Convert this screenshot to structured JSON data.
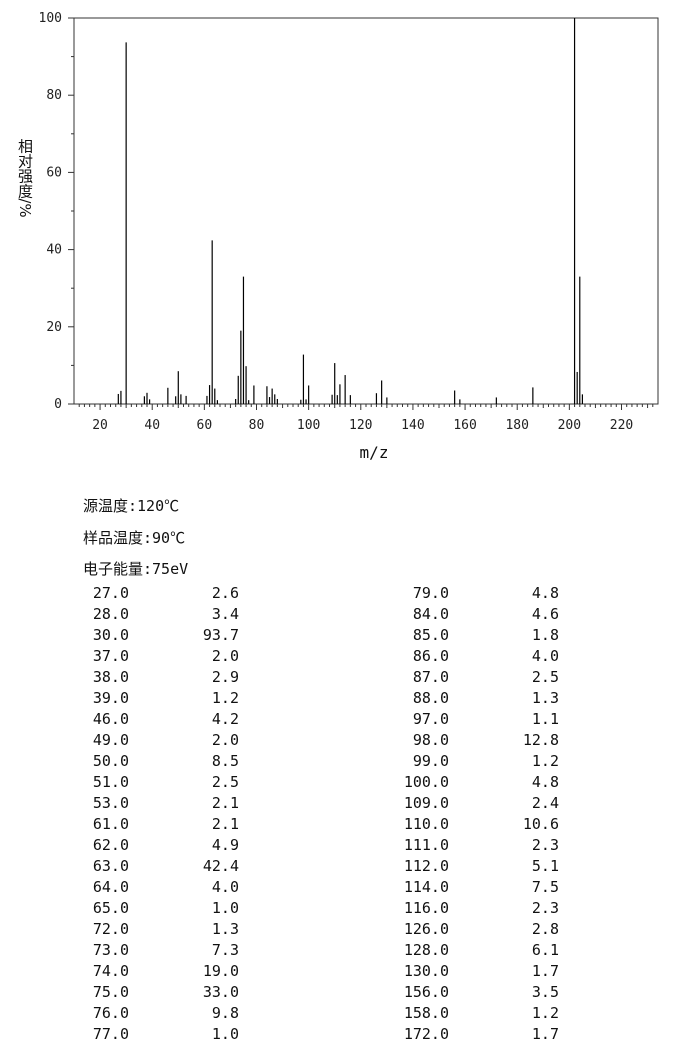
{
  "chart_data": {
    "type": "bar",
    "title": "",
    "xlabel": "m/z",
    "ylabel": "相对强度/%",
    "xlim": [
      10,
      234
    ],
    "ylim": [
      0,
      100
    ],
    "x_ticks": [
      20,
      40,
      60,
      80,
      100,
      120,
      140,
      160,
      180,
      200,
      220
    ],
    "y_ticks": [
      0,
      20,
      40,
      60,
      80,
      100
    ],
    "grid": false,
    "series": [
      {
        "x": [
          27,
          28,
          30,
          37,
          38,
          39,
          46,
          49,
          50,
          51,
          53,
          61,
          62,
          63,
          64,
          65,
          72,
          73,
          74,
          75,
          76,
          77,
          79,
          84,
          85,
          86,
          87,
          88,
          97,
          98,
          99,
          100,
          109,
          110,
          111,
          112,
          114,
          116,
          126,
          128,
          130,
          156,
          158,
          172,
          186,
          202,
          203,
          204,
          205
        ],
        "values": [
          2.6,
          3.4,
          93.7,
          2.0,
          2.9,
          1.2,
          4.2,
          2.0,
          8.5,
          2.5,
          2.1,
          2.1,
          4.9,
          42.4,
          4.0,
          1.0,
          1.3,
          7.3,
          19.0,
          33.0,
          9.8,
          1.0,
          4.8,
          4.6,
          1.8,
          4.0,
          2.5,
          1.3,
          1.1,
          12.8,
          1.2,
          4.8,
          2.4,
          10.6,
          2.3,
          5.1,
          7.5,
          2.3,
          2.8,
          6.1,
          1.7,
          3.5,
          1.2,
          1.7,
          4.3,
          100.0,
          8.3,
          33.0,
          2.5
        ]
      }
    ]
  },
  "conditions": {
    "source_temp": "源温度:120℃",
    "sample_temp": "样品温度:90℃",
    "electron_energy": "电子能量:75eV"
  },
  "peak_table": {
    "rows": [
      [
        "27.0",
        "2.6",
        "79.0",
        "4.8"
      ],
      [
        "28.0",
        "3.4",
        "84.0",
        "4.6"
      ],
      [
        "30.0",
        "93.7",
        "85.0",
        "1.8"
      ],
      [
        "37.0",
        "2.0",
        "86.0",
        "4.0"
      ],
      [
        "38.0",
        "2.9",
        "87.0",
        "2.5"
      ],
      [
        "39.0",
        "1.2",
        "88.0",
        "1.3"
      ],
      [
        "46.0",
        "4.2",
        "97.0",
        "1.1"
      ],
      [
        "49.0",
        "2.0",
        "98.0",
        "12.8"
      ],
      [
        "50.0",
        "8.5",
        "99.0",
        "1.2"
      ],
      [
        "51.0",
        "2.5",
        "100.0",
        "4.8"
      ],
      [
        "53.0",
        "2.1",
        "109.0",
        "2.4"
      ],
      [
        "61.0",
        "2.1",
        "110.0",
        "10.6"
      ],
      [
        "62.0",
        "4.9",
        "111.0",
        "2.3"
      ],
      [
        "63.0",
        "42.4",
        "112.0",
        "5.1"
      ],
      [
        "64.0",
        "4.0",
        "114.0",
        "7.5"
      ],
      [
        "65.0",
        "1.0",
        "116.0",
        "2.3"
      ],
      [
        "72.0",
        "1.3",
        "126.0",
        "2.8"
      ],
      [
        "73.0",
        "7.3",
        "128.0",
        "6.1"
      ],
      [
        "74.0",
        "19.0",
        "130.0",
        "1.7"
      ],
      [
        "75.0",
        "33.0",
        "156.0",
        "3.5"
      ],
      [
        "76.0",
        "9.8",
        "158.0",
        "1.2"
      ],
      [
        "77.0",
        "1.0",
        "172.0",
        "1.7"
      ]
    ]
  }
}
